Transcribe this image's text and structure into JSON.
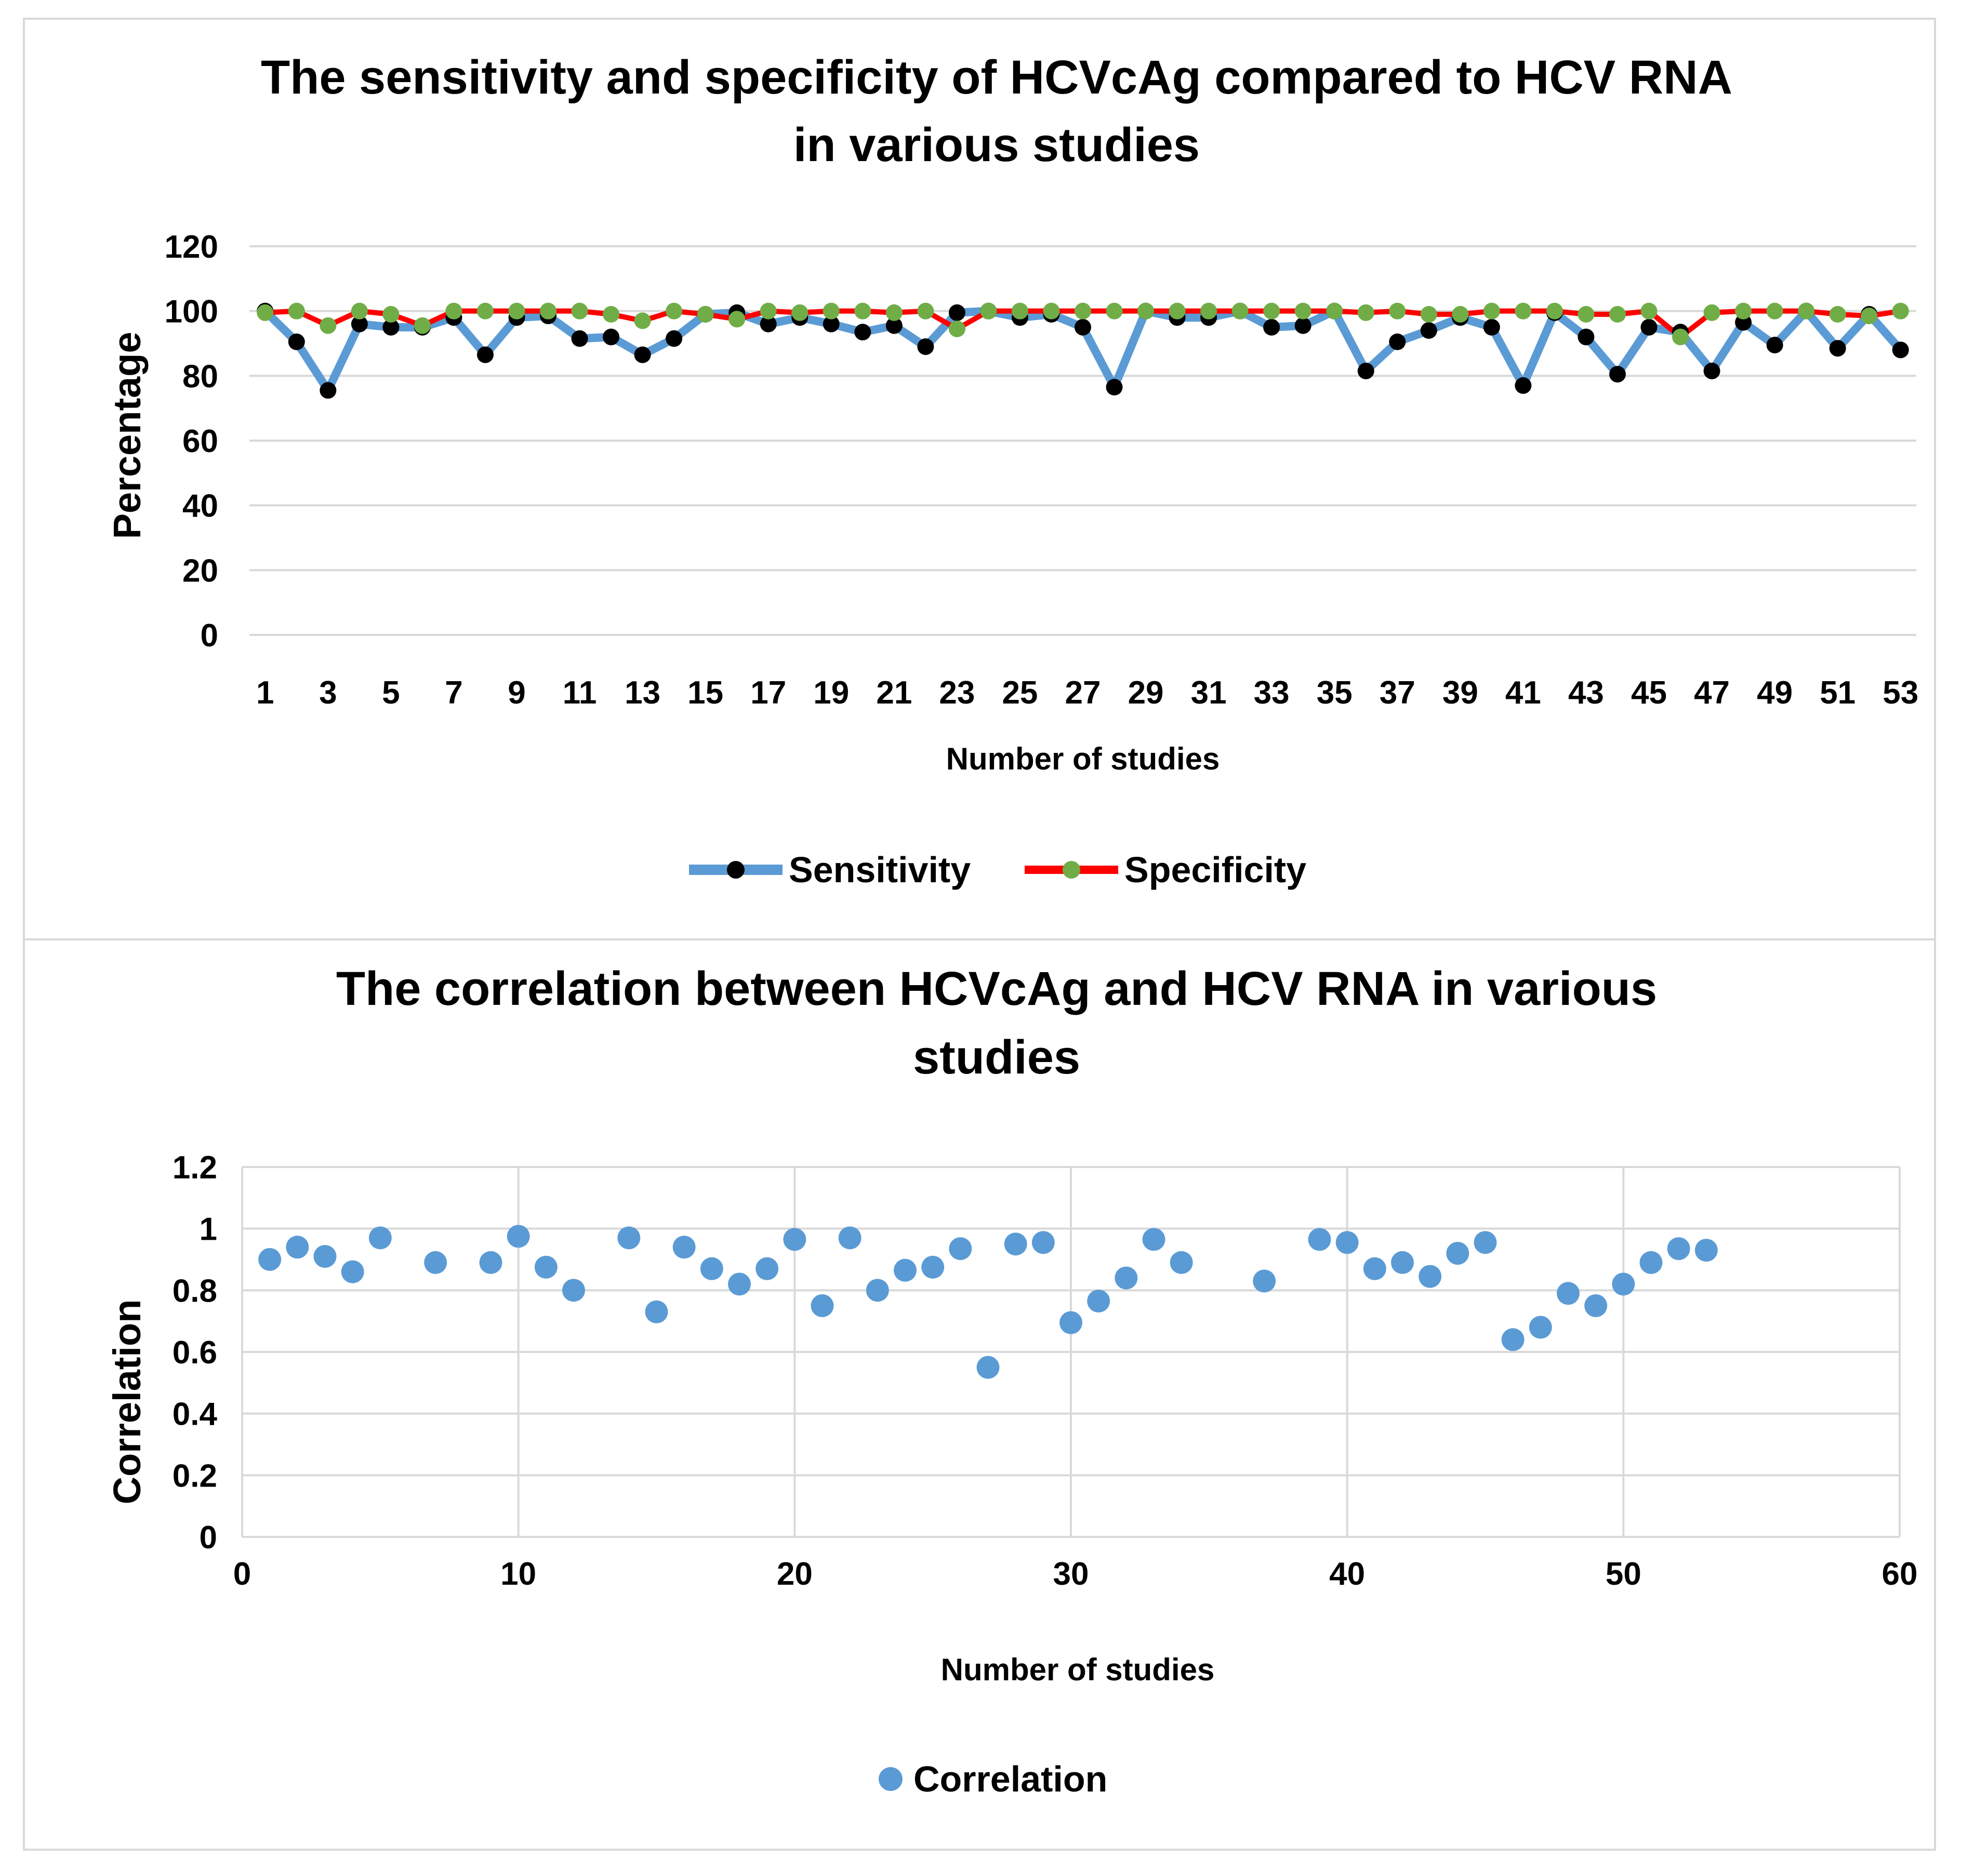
{
  "chart_data": [
    {
      "type": "line",
      "title": "The sensitivity and specificity of HCVcAg compared to HCV RNA in various studies",
      "title_lines": [
        "The sensitivity and specificity of HCVcAg compared to HCV RNA",
        "in various studies"
      ],
      "xlabel": "Number of studies",
      "ylabel": "Percentage",
      "ylim": [
        0,
        120
      ],
      "yticks": [
        0,
        20,
        40,
        60,
        80,
        100,
        120
      ],
      "grid": true,
      "legend": "bottom",
      "x": [
        1,
        2,
        3,
        4,
        5,
        6,
        7,
        8,
        9,
        10,
        11,
        12,
        13,
        14,
        15,
        16,
        17,
        18,
        19,
        20,
        21,
        22,
        23,
        24,
        25,
        26,
        27,
        28,
        29,
        30,
        31,
        32,
        33,
        34,
        35,
        36,
        37,
        38,
        39,
        40,
        41,
        42,
        43,
        44,
        45,
        46,
        47,
        48,
        49,
        50,
        51,
        52,
        53
      ],
      "x_tick_labels": [
        "1",
        "3",
        "5",
        "7",
        "9",
        "11",
        "13",
        "15",
        "17",
        "19",
        "21",
        "23",
        "25",
        "27",
        "29",
        "31",
        "33",
        "35",
        "37",
        "39",
        "41",
        "43",
        "45",
        "47",
        "49",
        "51",
        "53"
      ],
      "series": [
        {
          "name": "Sensitivity",
          "color": "#5b9bd5",
          "marker_color": "#000000",
          "values": [
            100,
            90.5,
            75.5,
            96,
            95,
            95,
            98,
            86.5,
            98,
            98.5,
            91.5,
            92,
            86.5,
            91.5,
            99,
            99.5,
            96,
            98,
            96,
            93.5,
            95.5,
            89,
            99.5,
            100,
            98,
            99,
            95,
            76.5,
            100,
            98,
            98,
            100,
            95,
            95.5,
            100,
            81.5,
            90.5,
            94,
            98,
            95,
            77,
            99.5,
            92,
            80.5,
            95,
            93.5,
            81.5,
            96.5,
            89.5,
            100,
            88.5,
            99,
            88
          ]
        },
        {
          "name": "Specificity",
          "color": "#ff0000",
          "marker_color": "#70ad47",
          "values": [
            99.5,
            100,
            95.5,
            100,
            99,
            95.5,
            100,
            100,
            100,
            100,
            100,
            99,
            97,
            100,
            99,
            97.5,
            100,
            99.5,
            100,
            100,
            99.5,
            100,
            94.5,
            100,
            100,
            100,
            100,
            100,
            100,
            100,
            100,
            100,
            100,
            100,
            100,
            99.5,
            100,
            99,
            99,
            100,
            100,
            100,
            99,
            99,
            100,
            92,
            99.5,
            100,
            100,
            100,
            99,
            98.5,
            100
          ]
        }
      ]
    },
    {
      "type": "scatter",
      "title": "The correlation between HCVcAg and HCV RNA in various studies",
      "title_lines": [
        "The correlation between HCVcAg and HCV RNA in various",
        "studies"
      ],
      "xlabel": "Number of studies",
      "ylabel": "Correlation",
      "xlim": [
        0,
        60
      ],
      "ylim": [
        0,
        1.2
      ],
      "xticks": [
        "0",
        "10",
        "20",
        "30",
        "40",
        "50",
        "60"
      ],
      "yticks": [
        "0",
        "0.2",
        "0.4",
        "0.6",
        "0.8",
        "1",
        "1.2"
      ],
      "grid": true,
      "legend": "bottom",
      "series": [
        {
          "name": "Correlation",
          "color": "#5b9bd5",
          "x": [
            1,
            2,
            3,
            4,
            5,
            7,
            9,
            10,
            11,
            12,
            14,
            15,
            16,
            17,
            18,
            19,
            20,
            21,
            22,
            23,
            24,
            25,
            26,
            27,
            28,
            29,
            30,
            31,
            32,
            33,
            34,
            37,
            39,
            40,
            41,
            42,
            43,
            44,
            45,
            46,
            47,
            48,
            49,
            50,
            51,
            52,
            53
          ],
          "y": [
            0.9,
            0.94,
            0.91,
            0.86,
            0.97,
            0.89,
            0.89,
            0.975,
            0.875,
            0.8,
            0.97,
            0.73,
            0.94,
            0.87,
            0.82,
            0.87,
            0.965,
            0.75,
            0.97,
            0.8,
            0.865,
            0.875,
            0.935,
            0.55,
            0.95,
            0.955,
            0.695,
            0.765,
            0.84,
            0.965,
            0.89,
            0.83,
            0.965,
            0.955,
            0.87,
            0.89,
            0.845,
            0.92,
            0.955,
            0.64,
            0.68,
            0.79,
            0.75,
            0.82,
            0.89,
            0.935,
            0.93
          ]
        }
      ]
    }
  ]
}
